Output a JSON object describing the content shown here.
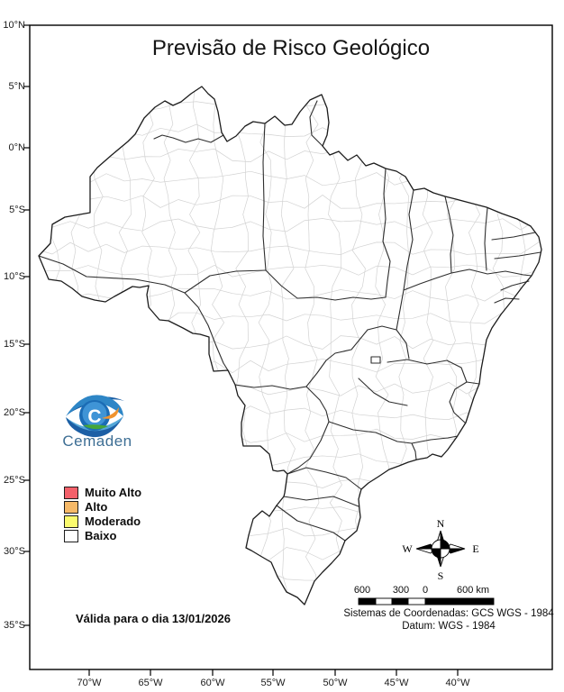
{
  "title": "Previsão de Risco Geológico",
  "axes": {
    "lat": [
      "10°N",
      "5°N",
      "0°N",
      "5°S",
      "10°S",
      "15°S",
      "20°S",
      "25°S",
      "30°S",
      "35°S"
    ],
    "lon": [
      "70°W",
      "65°W",
      "60°W",
      "55°W",
      "50°W",
      "45°W",
      "40°W"
    ]
  },
  "legend": {
    "items": [
      {
        "label": "Muito Alto",
        "color": "#F3606A"
      },
      {
        "label": "Alto",
        "color": "#F6B968"
      },
      {
        "label": "Moderado",
        "color": "#FAFA6E"
      },
      {
        "label": "Baixo",
        "color": "#FFFFFF"
      }
    ]
  },
  "logo": {
    "wordmark": "Cemaden"
  },
  "validity_text": "Válida para o dia 13/01/2026",
  "compass": {
    "north": "N",
    "south": "S",
    "east": "E",
    "west": "W"
  },
  "scale_bar": {
    "labels": [
      "600",
      "300",
      "0",
      "600 km"
    ]
  },
  "footer": {
    "coordinate_system": "Sistemas de Coordenadas: GCS WGS - 1984",
    "datum": "Datum: WGS - 1984"
  },
  "map_colors": {
    "state_border": "#2e2e2e",
    "municipal_border": "#d2d2d2",
    "fill": "#ffffff",
    "frame": "#000000"
  }
}
